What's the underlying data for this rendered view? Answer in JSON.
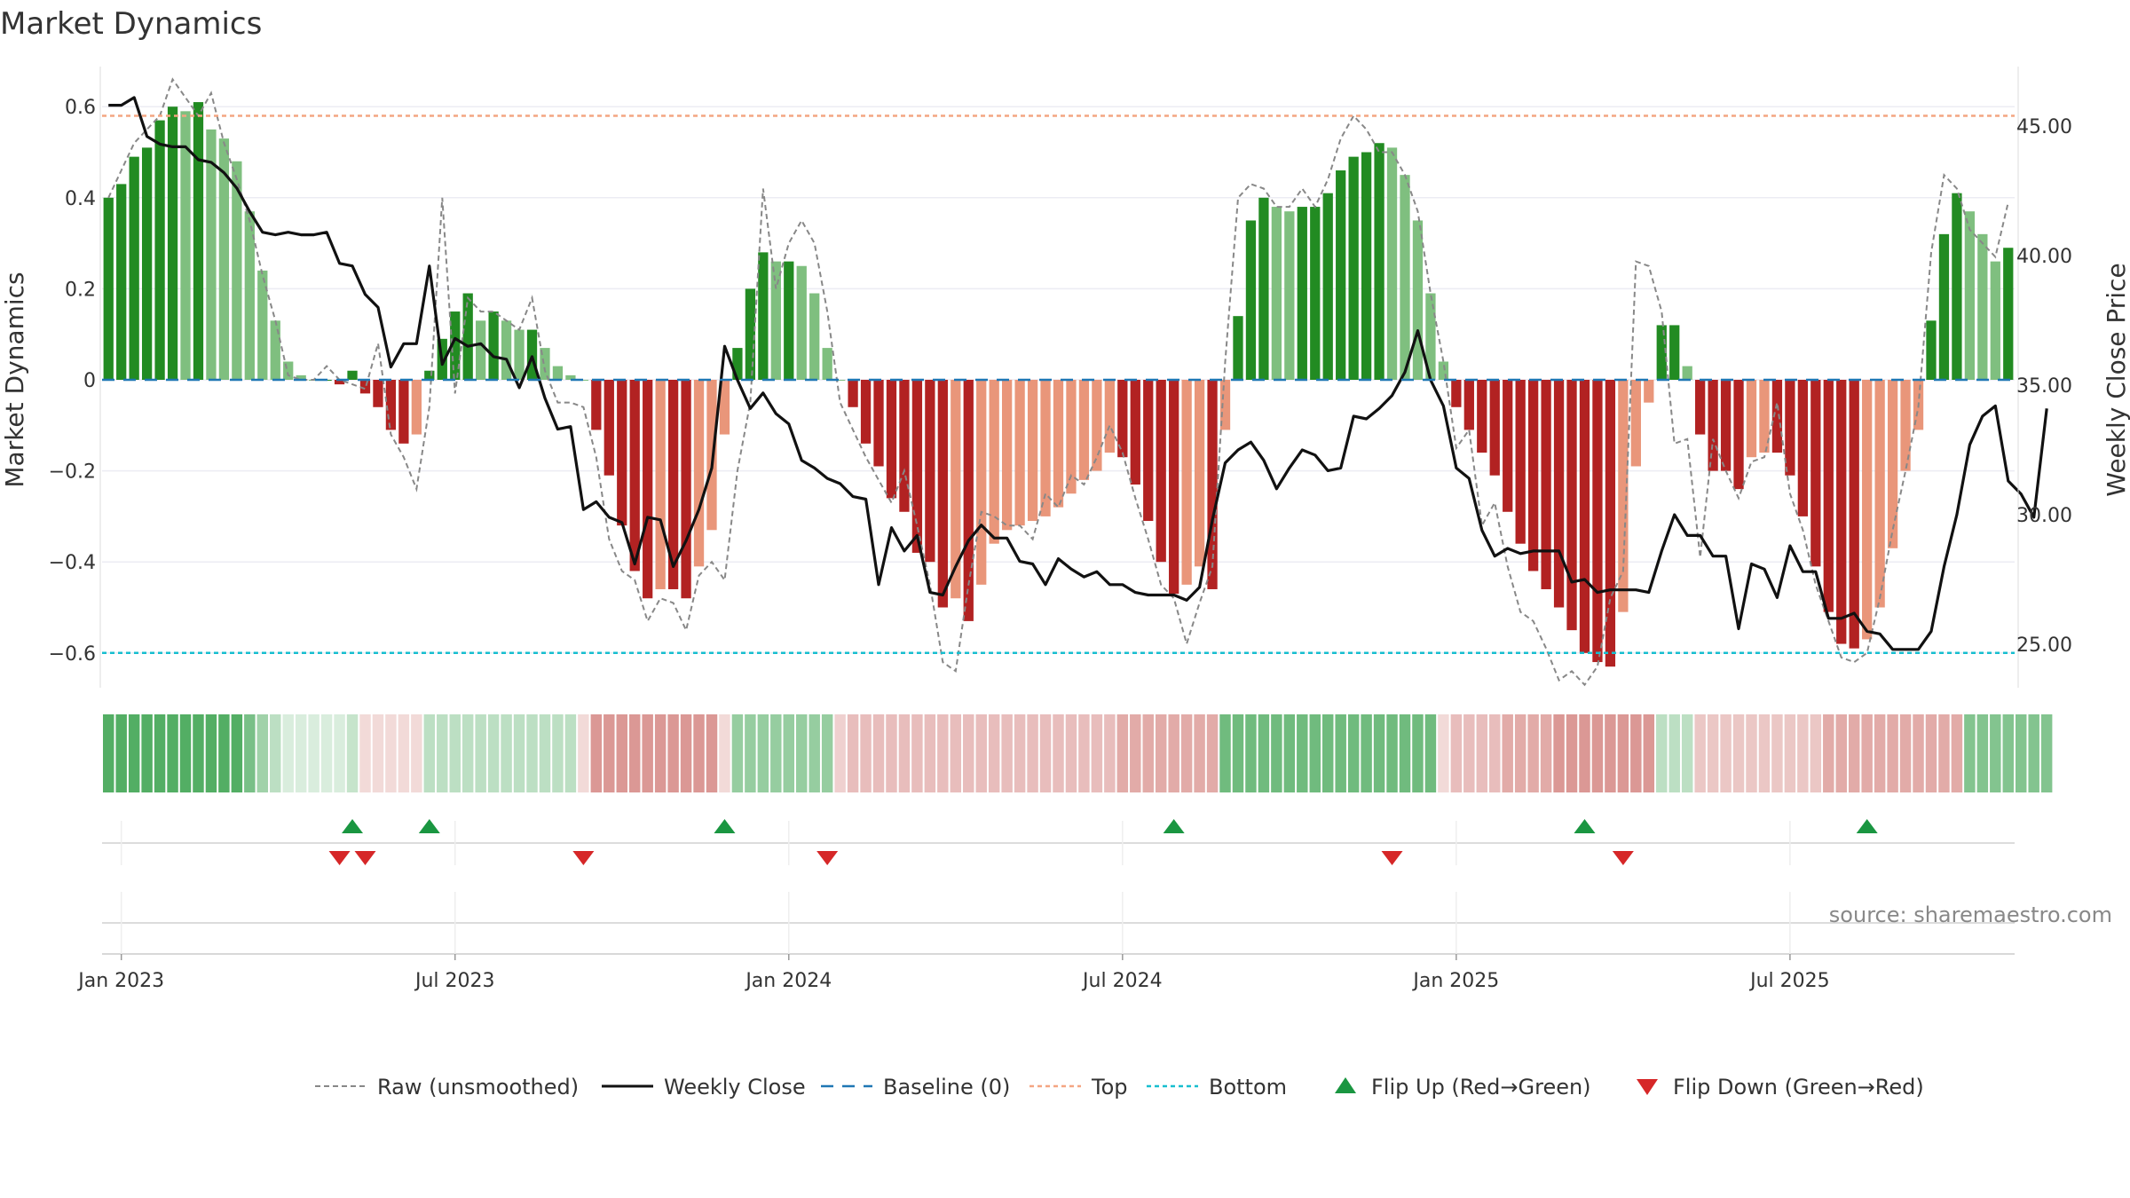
{
  "chart_data": {
    "type": "bar",
    "title": "Market Dynamics",
    "ylabel_left": "Market Dynamics",
    "ylabel_right": "Weekly Close Price",
    "source": "source: sharemaestro.com",
    "ylim_left": [
      -0.68,
      0.68
    ],
    "ylim_right": [
      23.6,
      47.0
    ],
    "yticks_left": [
      {
        "value": 0.6,
        "label": "0.6"
      },
      {
        "value": 0.4,
        "label": "0.4"
      },
      {
        "value": 0.2,
        "label": "0.2"
      },
      {
        "value": 0,
        "label": "0"
      },
      {
        "value": -0.2,
        "label": "−0.2"
      },
      {
        "value": -0.4,
        "label": "−0.4"
      },
      {
        "value": -0.6,
        "label": "−0.6"
      }
    ],
    "yticks_right": [
      {
        "value": 45,
        "label": "45.00"
      },
      {
        "value": 40,
        "label": "40.00"
      },
      {
        "value": 35,
        "label": "35.00"
      },
      {
        "value": 30,
        "label": "30.00"
      },
      {
        "value": 25,
        "label": "25.00"
      }
    ],
    "xticks": [
      {
        "index": 1,
        "label": "Jan 2023"
      },
      {
        "index": 27,
        "label": "Jul 2023"
      },
      {
        "index": 53,
        "label": "Jan 2024"
      },
      {
        "index": 79,
        "label": "Jul 2024"
      },
      {
        "index": 105,
        "label": "Jan 2025"
      },
      {
        "index": 131,
        "label": "Jul 2025"
      }
    ],
    "top_line": 0.58,
    "bottom_line": -0.6,
    "colors": {
      "strong_green": "#228b22",
      "light_green": "#7fbf7f",
      "strong_red": "#b22222",
      "light_red": "#e9967a",
      "raw": "#888888",
      "close": "#111111",
      "baseline": "#1f77b4",
      "top": "#f4a582",
      "bottom": "#17becf",
      "flip_up": "#1a9641",
      "flip_down": "#d62728"
    },
    "series": [
      {
        "name": "Market Dynamics (bars)",
        "values": [
          0.4,
          0.43,
          0.49,
          0.51,
          0.57,
          0.6,
          0.59,
          0.61,
          0.55,
          0.53,
          0.48,
          0.37,
          0.24,
          0.13,
          0.04,
          0.01,
          0.0,
          0.0,
          -0.01,
          0.02,
          -0.03,
          -0.06,
          -0.11,
          -0.14,
          -0.12,
          0.02,
          0.09,
          0.15,
          0.19,
          0.13,
          0.15,
          0.13,
          0.11,
          0.11,
          0.07,
          0.03,
          0.01,
          0.0,
          -0.11,
          -0.21,
          -0.32,
          -0.42,
          -0.48,
          -0.46,
          -0.46,
          -0.48,
          -0.41,
          -0.33,
          -0.12,
          0.07,
          0.2,
          0.28,
          0.26,
          0.26,
          0.25,
          0.19,
          0.07,
          0.0,
          -0.06,
          -0.14,
          -0.19,
          -0.26,
          -0.29,
          -0.38,
          -0.4,
          -0.5,
          -0.48,
          -0.53,
          -0.45,
          -0.36,
          -0.33,
          -0.32,
          -0.31,
          -0.3,
          -0.28,
          -0.25,
          -0.22,
          -0.2,
          -0.16,
          -0.17,
          -0.23,
          -0.31,
          -0.4,
          -0.47,
          -0.45,
          -0.41,
          -0.46,
          -0.11,
          0.14,
          0.35,
          0.4,
          0.38,
          0.37,
          0.38,
          0.38,
          0.41,
          0.46,
          0.49,
          0.5,
          0.52,
          0.51,
          0.45,
          0.35,
          0.19,
          0.04,
          -0.06,
          -0.11,
          -0.16,
          -0.21,
          -0.29,
          -0.36,
          -0.42,
          -0.46,
          -0.5,
          -0.55,
          -0.6,
          -0.62,
          -0.63,
          -0.51,
          -0.19,
          -0.05,
          0.12,
          0.12,
          0.03,
          -0.12,
          -0.2,
          -0.2,
          -0.24,
          -0.17,
          -0.16,
          -0.16,
          -0.21,
          -0.3,
          -0.41,
          -0.51,
          -0.58,
          -0.59,
          -0.57,
          -0.5,
          -0.37,
          -0.2,
          -0.11,
          0.13,
          0.32,
          0.41,
          0.37,
          0.32,
          0.26,
          0.29
        ]
      },
      {
        "name": "Raw (unsmoothed)",
        "values": [
          0.4,
          0.46,
          0.52,
          0.55,
          0.58,
          0.66,
          0.62,
          0.58,
          0.63,
          0.52,
          0.44,
          0.35,
          0.23,
          0.13,
          0.01,
          0.0,
          0.0,
          0.03,
          0.0,
          -0.01,
          -0.02,
          0.08,
          -0.12,
          -0.17,
          -0.24,
          -0.06,
          0.4,
          -0.03,
          0.18,
          0.15,
          0.15,
          0.13,
          0.11,
          0.18,
          0.02,
          -0.05,
          -0.05,
          -0.06,
          -0.17,
          -0.35,
          -0.42,
          -0.44,
          -0.53,
          -0.48,
          -0.49,
          -0.55,
          -0.43,
          -0.4,
          -0.44,
          -0.2,
          -0.05,
          0.42,
          0.2,
          0.3,
          0.35,
          0.3,
          0.15,
          -0.05,
          -0.11,
          -0.17,
          -0.22,
          -0.27,
          -0.2,
          -0.32,
          -0.45,
          -0.62,
          -0.64,
          -0.45,
          -0.29,
          -0.3,
          -0.32,
          -0.32,
          -0.35,
          -0.25,
          -0.28,
          -0.21,
          -0.23,
          -0.17,
          -0.1,
          -0.16,
          -0.26,
          -0.35,
          -0.45,
          -0.48,
          -0.58,
          -0.49,
          -0.41,
          0.04,
          0.4,
          0.43,
          0.42,
          0.38,
          0.38,
          0.42,
          0.38,
          0.44,
          0.53,
          0.58,
          0.55,
          0.5,
          0.5,
          0.45,
          0.37,
          0.19,
          0.04,
          -0.15,
          -0.11,
          -0.32,
          -0.27,
          -0.41,
          -0.51,
          -0.53,
          -0.59,
          -0.66,
          -0.64,
          -0.67,
          -0.63,
          -0.48,
          -0.42,
          0.26,
          0.25,
          0.15,
          -0.14,
          -0.13,
          -0.39,
          -0.13,
          -0.2,
          -0.26,
          -0.18,
          -0.17,
          -0.05,
          -0.25,
          -0.33,
          -0.45,
          -0.53,
          -0.61,
          -0.62,
          -0.6,
          -0.48,
          -0.33,
          -0.2,
          -0.06,
          0.28,
          0.45,
          0.42,
          0.33,
          0.3,
          0.27,
          0.39
        ]
      },
      {
        "name": "Weekly Close",
        "values": [
          45.8,
          45.8,
          46.1,
          44.6,
          44.3,
          44.2,
          44.2,
          43.7,
          43.6,
          43.2,
          42.6,
          41.7,
          40.9,
          40.8,
          40.9,
          40.8,
          40.8,
          40.9,
          39.7,
          39.6,
          38.5,
          38.0,
          35.7,
          36.6,
          36.6,
          39.6,
          35.8,
          36.8,
          36.5,
          36.6,
          36.1,
          36.0,
          34.9,
          36.1,
          34.5,
          33.3,
          33.4,
          30.2,
          30.5,
          29.9,
          29.7,
          28.1,
          29.9,
          29.8,
          28.0,
          29.0,
          30.2,
          31.8,
          36.5,
          35.2,
          34.1,
          34.7,
          33.9,
          33.5,
          32.1,
          31.8,
          31.4,
          31.2,
          30.7,
          30.6,
          27.3,
          29.5,
          28.6,
          29.2,
          27.0,
          26.9,
          28.0,
          29.0,
          29.6,
          29.1,
          29.1,
          28.2,
          28.1,
          27.3,
          28.3,
          27.9,
          27.6,
          27.8,
          27.3,
          27.3,
          27.0,
          26.9,
          26.9,
          26.9,
          26.7,
          27.2,
          29.8,
          32.0,
          32.5,
          32.8,
          32.1,
          31.0,
          31.8,
          32.5,
          32.3,
          31.7,
          31.8,
          33.8,
          33.7,
          34.1,
          34.6,
          35.5,
          37.1,
          35.2,
          34.2,
          31.8,
          31.4,
          29.4,
          28.4,
          28.7,
          28.5,
          28.6,
          28.6,
          28.6,
          27.4,
          27.5,
          27.0,
          27.1,
          27.1,
          27.1,
          27.0,
          28.6,
          30.0,
          29.2,
          29.2,
          28.4,
          28.4,
          25.6,
          28.1,
          27.9,
          26.8,
          28.8,
          27.8,
          27.8,
          26.0,
          26.0,
          26.2,
          25.5,
          25.4,
          24.8,
          24.8,
          24.8,
          25.5,
          28.0,
          30.0,
          32.7,
          33.8,
          34.2,
          31.3,
          30.8,
          29.9,
          34.1
        ]
      }
    ],
    "tile_strip": [
      0.9,
      0.9,
      0.9,
      0.9,
      0.9,
      0.9,
      0.9,
      0.9,
      0.9,
      0.9,
      0.9,
      0.7,
      0.5,
      0.35,
      0.2,
      0.2,
      0.2,
      0.2,
      0.2,
      0.3,
      -0.2,
      -0.2,
      -0.2,
      -0.2,
      -0.2,
      0.35,
      0.35,
      0.35,
      0.35,
      0.35,
      0.35,
      0.35,
      0.35,
      0.35,
      0.35,
      0.35,
      0.35,
      -0.2,
      -0.55,
      -0.55,
      -0.55,
      -0.55,
      -0.55,
      -0.55,
      -0.55,
      -0.55,
      -0.55,
      -0.55,
      -0.2,
      0.55,
      0.55,
      0.55,
      0.55,
      0.55,
      0.55,
      0.55,
      0.55,
      -0.25,
      -0.35,
      -0.35,
      -0.35,
      -0.35,
      -0.35,
      -0.35,
      -0.35,
      -0.35,
      -0.35,
      -0.35,
      -0.35,
      -0.35,
      -0.35,
      -0.35,
      -0.35,
      -0.35,
      -0.35,
      -0.35,
      -0.35,
      -0.35,
      -0.35,
      -0.45,
      -0.45,
      -0.45,
      -0.45,
      -0.45,
      -0.45,
      -0.45,
      -0.45,
      0.75,
      0.75,
      0.75,
      0.75,
      0.75,
      0.75,
      0.75,
      0.75,
      0.75,
      0.75,
      0.75,
      0.75,
      0.75,
      0.75,
      0.75,
      0.75,
      0.75,
      -0.2,
      -0.35,
      -0.35,
      -0.35,
      -0.35,
      -0.45,
      -0.45,
      -0.45,
      -0.45,
      -0.55,
      -0.55,
      -0.55,
      -0.55,
      -0.55,
      -0.55,
      -0.55,
      -0.55,
      0.35,
      0.35,
      0.35,
      -0.3,
      -0.3,
      -0.3,
      -0.3,
      -0.3,
      -0.3,
      -0.3,
      -0.3,
      -0.3,
      -0.3,
      -0.45,
      -0.45,
      -0.45,
      -0.45,
      -0.45,
      -0.45,
      -0.45,
      -0.45,
      -0.45,
      -0.45,
      -0.45,
      0.65,
      0.65,
      0.65,
      0.65,
      0.65,
      0.65,
      0.65
    ],
    "flip_up_indices": [
      19,
      25,
      48,
      83,
      115,
      137
    ],
    "flip_down_indices": [
      18,
      20,
      37,
      56,
      100,
      118
    ],
    "legend": [
      {
        "label": "Raw (unsmoothed)",
        "kind": "dashed-gray"
      },
      {
        "label": "Weekly Close",
        "kind": "solid-black"
      },
      {
        "label": "Baseline (0)",
        "kind": "dashed-blue"
      },
      {
        "label": "Top",
        "kind": "dotted-orange"
      },
      {
        "label": "Bottom",
        "kind": "dotted-cyan"
      },
      {
        "label": "Flip Up (Red→Green)",
        "kind": "triangle-up"
      },
      {
        "label": "Flip Down (Green→Red)",
        "kind": "triangle-down"
      }
    ]
  }
}
